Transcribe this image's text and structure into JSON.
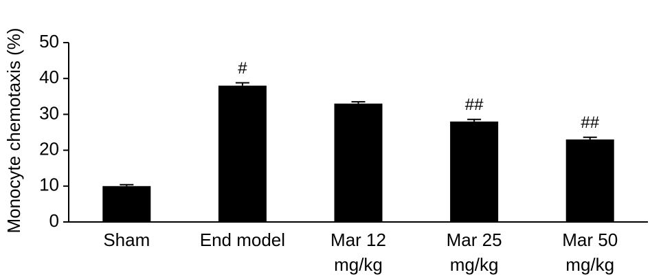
{
  "chart_data": {
    "type": "bar",
    "y_label": "Monocyte chemotaxis (%)",
    "categories": [
      [
        "Sham"
      ],
      [
        "End model"
      ],
      [
        "Mar 12",
        "mg/kg"
      ],
      [
        "Mar 25",
        "mg/kg"
      ],
      [
        "Mar 50",
        "mg/kg"
      ]
    ],
    "values": [
      10,
      38,
      33,
      28,
      23
    ],
    "errors": [
      0.4,
      0.8,
      0.5,
      0.6,
      0.6
    ],
    "annotations": [
      null,
      "#",
      null,
      "##",
      "##"
    ],
    "color": "#000000",
    "ylim": [
      0,
      50
    ],
    "yticks": [
      0,
      10,
      20,
      30,
      40,
      50
    ],
    "grid": false
  }
}
